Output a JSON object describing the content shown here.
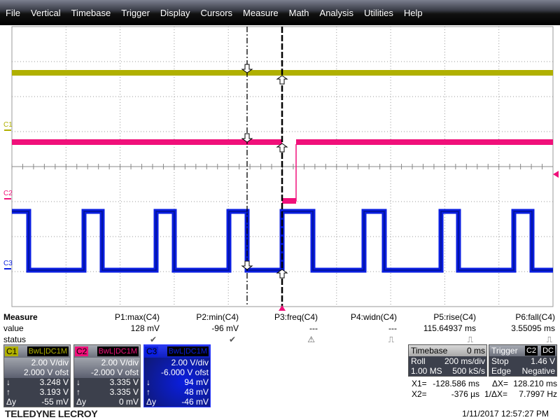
{
  "menu": [
    "File",
    "Vertical",
    "Timebase",
    "Trigger",
    "Display",
    "Cursors",
    "Measure",
    "Math",
    "Analysis",
    "Utilities",
    "Help"
  ],
  "colors": {
    "c1": "#b0b000",
    "c2": "#f0107a",
    "c3": "#0a1ee0",
    "cursor": "#000000"
  },
  "traces": {
    "labels": [
      "C1",
      "C2",
      "C3"
    ]
  },
  "measure": {
    "header": "Measure",
    "row_value": "value",
    "row_status": "status",
    "params": [
      {
        "name": "P1:max(C4)",
        "value": "128 mV",
        "status": "check"
      },
      {
        "name": "P2:min(C4)",
        "value": "-96 mV",
        "status": "check"
      },
      {
        "name": "P3:freq(C4)",
        "value": "---",
        "status": "warning"
      },
      {
        "name": "P4:widn(C4)",
        "value": "---",
        "status": "pulse"
      },
      {
        "name": "P5:rise(C4)",
        "value": "115.64937 ms",
        "status": "pulse"
      },
      {
        "name": "P6:fall(C4)",
        "value": "3.55095 ms",
        "status": "pulse"
      }
    ],
    "status_glyphs": {
      "check": "✔",
      "warning": "⚠",
      "pulse": "⎍"
    }
  },
  "channels": [
    {
      "tag": "C1",
      "bw": "BwL",
      "coupling": "DC1M",
      "vdiv": "2.00 V/div",
      "ofst": "2.000 V ofst",
      "down": "3.248 V",
      "up": "3.193 V",
      "dy": "-55 mV",
      "color": "#b0b000"
    },
    {
      "tag": "C2",
      "bw": "BwL",
      "coupling": "DC1M",
      "vdiv": "2.00 V/div",
      "ofst": "-2.000 V ofst",
      "down": "3.335 V",
      "up": "3.335 V",
      "dy": "0 mV",
      "color": "#f0107a"
    },
    {
      "tag": "C3",
      "bw": "BwL",
      "coupling": "DC1M",
      "vdiv": "2.00 V/div",
      "ofst": "-6.000 V ofst",
      "down": "94 mV",
      "up": "48 mV",
      "dy": "-46 mV",
      "color": "#0a1ee0"
    }
  ],
  "cursor_symbols": {
    "down": "↓",
    "up": "↑",
    "dy": "Δy"
  },
  "timebase": {
    "title": "Timebase",
    "delay": "0 ms",
    "mode": "Roll",
    "tdiv": "200 ms/div",
    "samples": "1.00 MS",
    "rate": "500 kS/s"
  },
  "trigger": {
    "title": "Trigger",
    "source": "C2",
    "coupling": "DC",
    "mode": "Stop",
    "level": "1.46 V",
    "type": "Edge",
    "slope": "Negative"
  },
  "cursors": {
    "x1_label": "X1=",
    "x1": "-128.586 ms",
    "x2_label": "X2=",
    "x2": "-376 µs",
    "dx_label": "ΔX=",
    "dx": "128.210 ms",
    "inv_label": "1/ΔX=",
    "inv": "7.7997 Hz"
  },
  "logo": "TELEDYNE LECROY",
  "datetime": "1/11/2017 12:57:27 PM"
}
